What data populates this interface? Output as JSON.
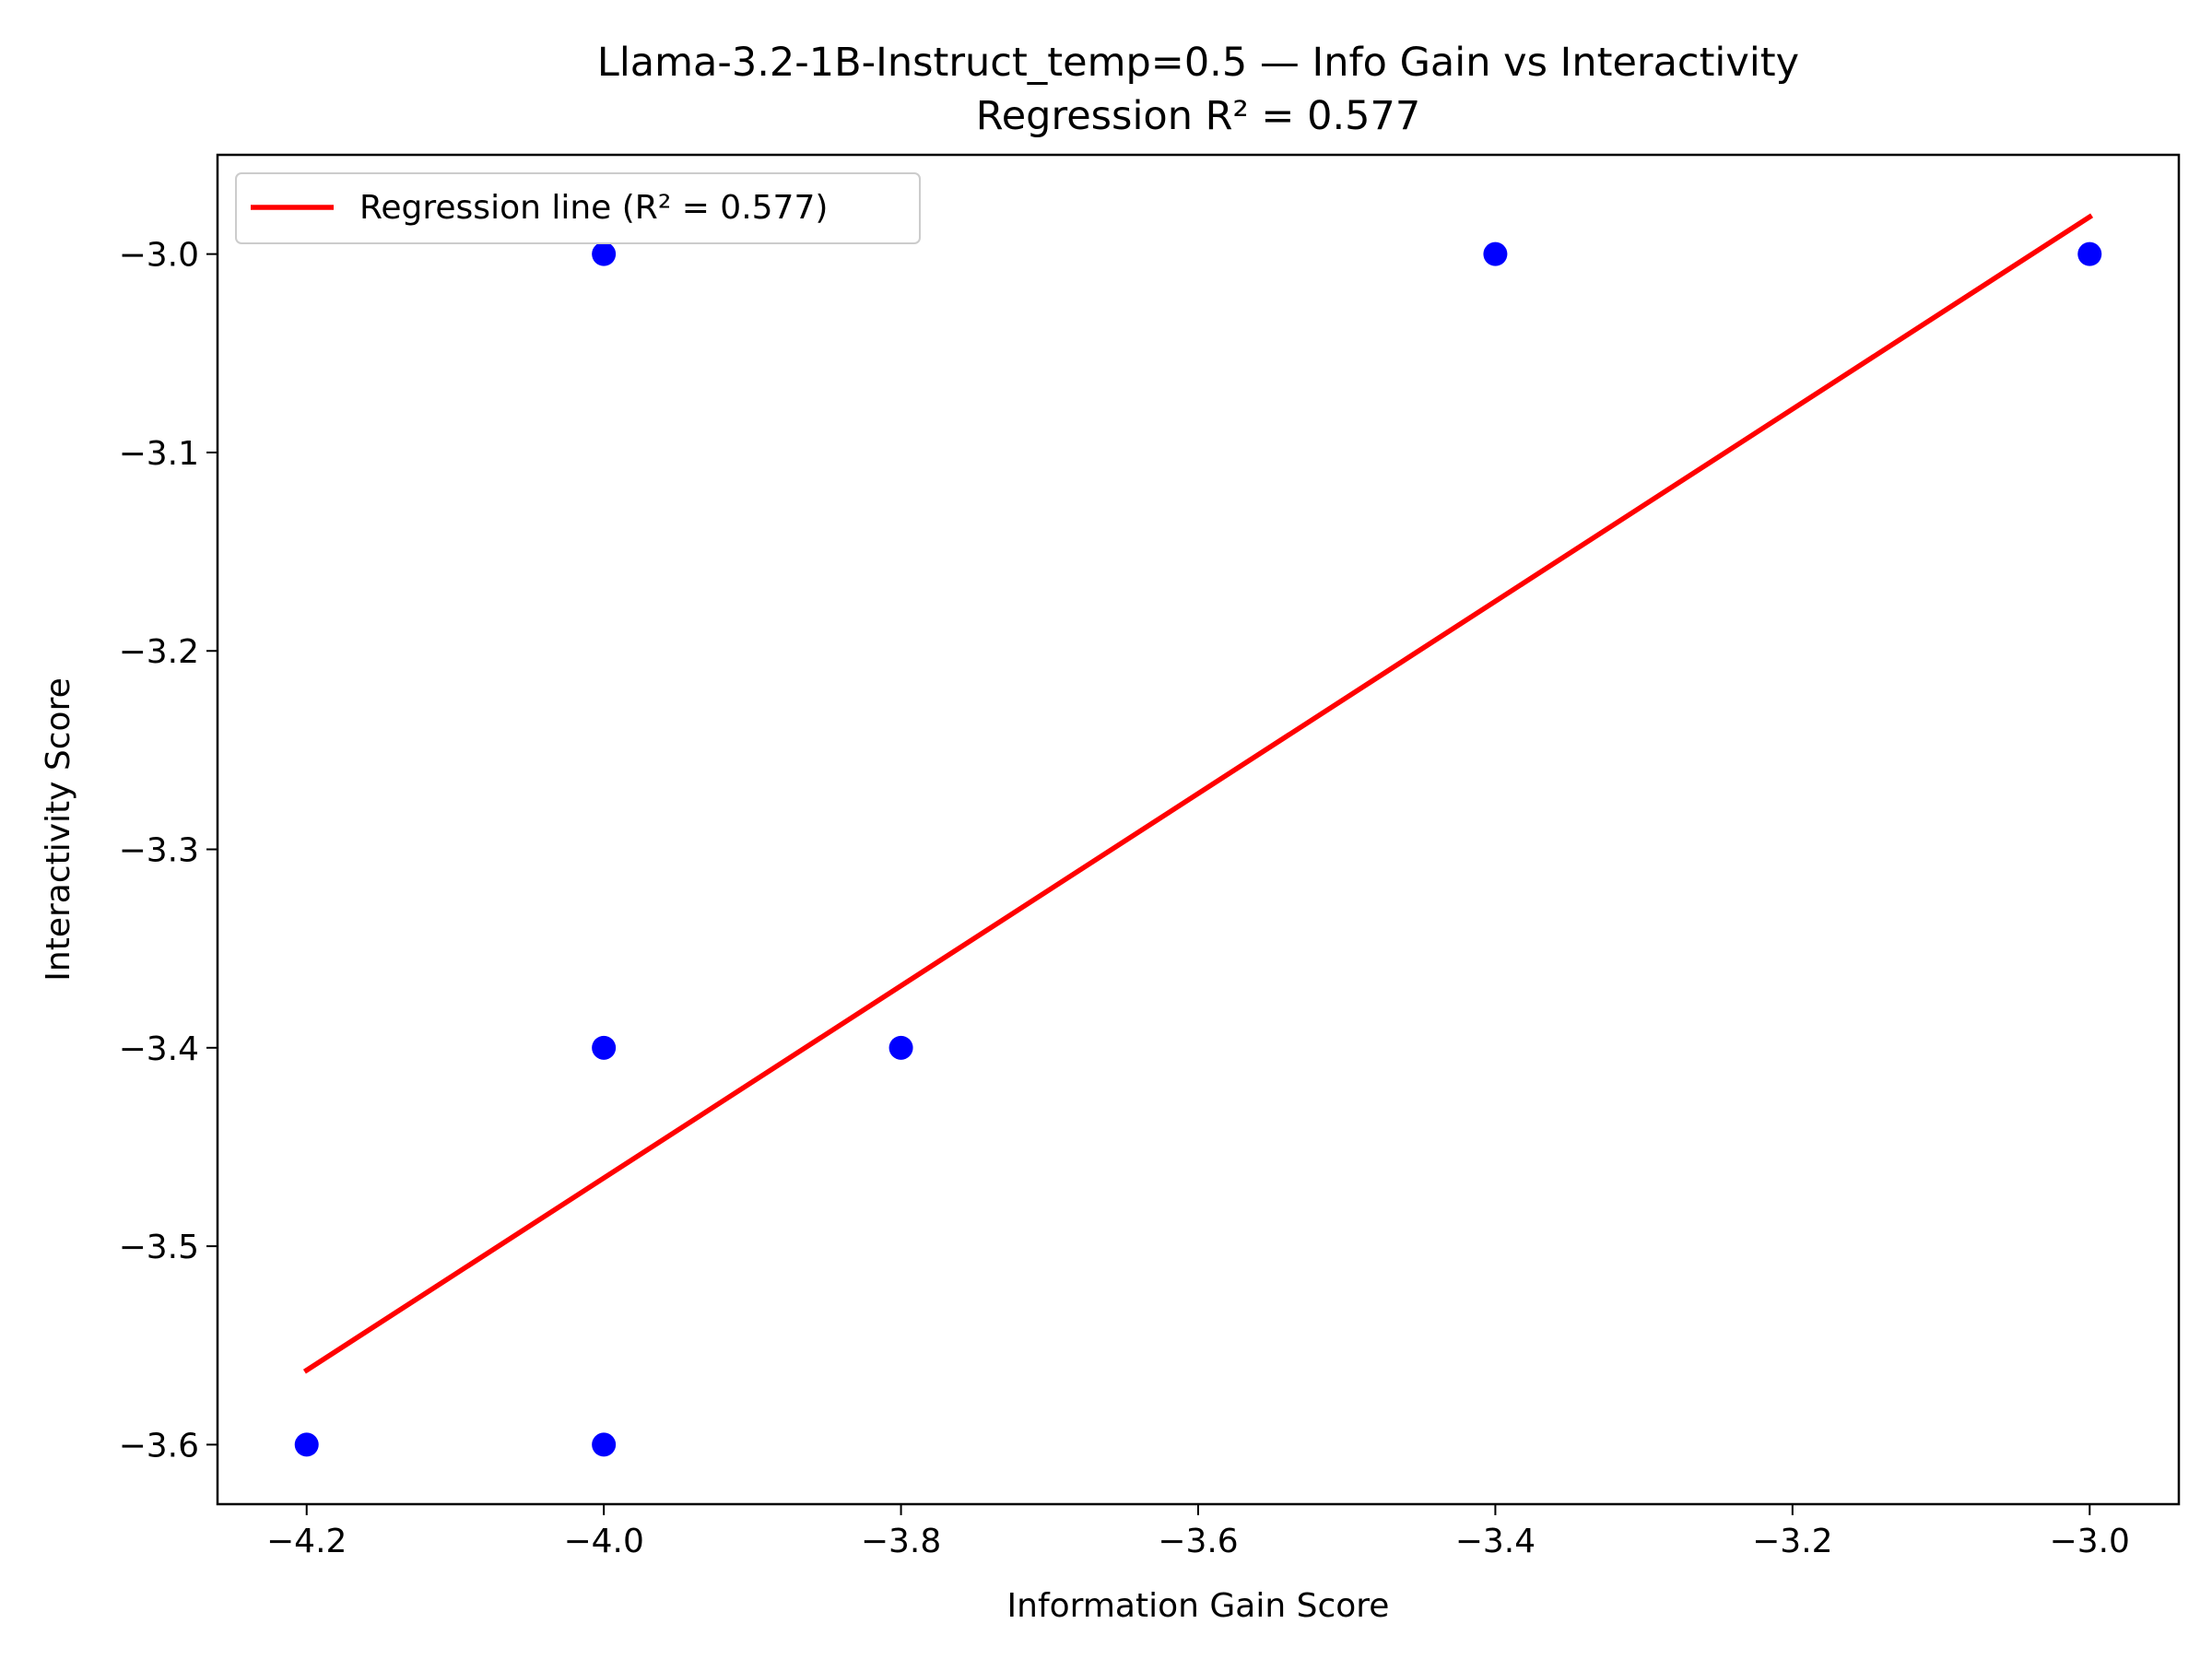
{
  "chart_data": {
    "type": "scatter",
    "title": "Llama-3.2-1B-Instruct_temp=0.5 — Info Gain vs Interactivity",
    "subtitle": "Regression R² = 0.577",
    "xlabel": "Information Gain Score",
    "ylabel": "Interactivity Score",
    "xlim": [
      -4.26,
      -2.94
    ],
    "ylim": [
      -3.63,
      -2.95
    ],
    "xticks": [
      -4.2,
      -4.0,
      -3.8,
      -3.6,
      -3.4,
      -3.2,
      -3.0
    ],
    "xtick_labels": [
      "−4.2",
      "−4.0",
      "−3.8",
      "−3.6",
      "−3.4",
      "−3.2",
      "−3.0"
    ],
    "yticks": [
      -3.0,
      -3.1,
      -3.2,
      -3.3,
      -3.4,
      -3.5,
      -3.6
    ],
    "ytick_labels": [
      "−3.0",
      "−3.1",
      "−3.2",
      "−3.3",
      "−3.4",
      "−3.5",
      "−3.6"
    ],
    "points": [
      {
        "x": -4.2,
        "y": -3.6
      },
      {
        "x": -4.0,
        "y": -3.6
      },
      {
        "x": -4.0,
        "y": -3.4
      },
      {
        "x": -4.0,
        "y": -3.0
      },
      {
        "x": -3.8,
        "y": -3.4
      },
      {
        "x": -3.4,
        "y": -3.0
      },
      {
        "x": -3.0,
        "y": -3.0
      }
    ],
    "regression": {
      "label": "Regression line (R² = 0.577)",
      "x": [
        -4.2,
        -3.0
      ],
      "y": [
        -3.5625,
        -2.98125
      ]
    },
    "legend_position": "top-left",
    "grid": false,
    "colors": {
      "points": "#0000ff",
      "line": "#ff0000",
      "axes": "#000000"
    }
  }
}
